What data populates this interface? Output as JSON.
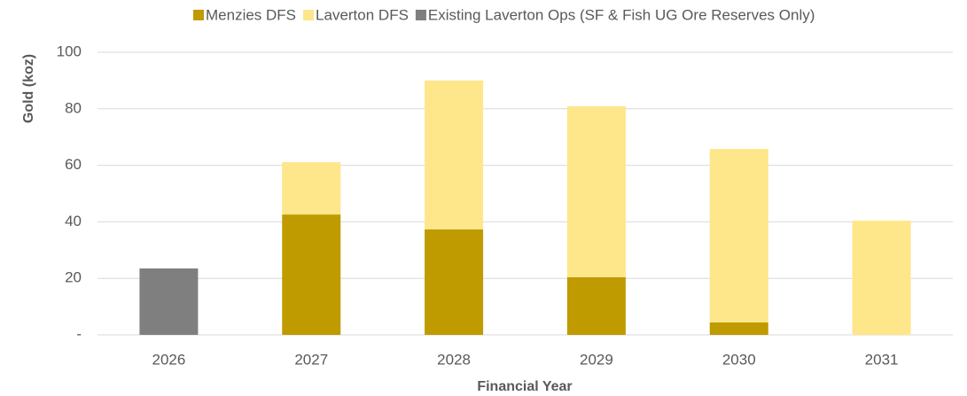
{
  "chart_data": {
    "type": "stacked_bar",
    "categories": [
      "2026",
      "2027",
      "2028",
      "2029",
      "2030",
      "2031"
    ],
    "series": [
      {
        "name": "Menzies DFS",
        "color": "#bf9b00",
        "values": [
          0,
          42.6,
          37.3,
          20.4,
          4.4,
          0
        ]
      },
      {
        "name": "Laverton DFS",
        "color": "#fee68a",
        "values": [
          0,
          18.5,
          52.7,
          60.5,
          61.4,
          40.4
        ]
      },
      {
        "name": "Existing Laverton Ops (SF & Fish UG Ore Reserves Only)",
        "color": "#7f7f7f",
        "values": [
          23.5,
          0,
          0,
          0,
          0,
          0
        ]
      }
    ],
    "ylim": [
      0,
      100
    ],
    "yticks": [
      {
        "value": 0,
        "label": "-"
      },
      20,
      40,
      60,
      80,
      100
    ],
    "y_label": "Gold (koz)",
    "x_label": "Financial Year",
    "grid": true,
    "legend": "top"
  }
}
